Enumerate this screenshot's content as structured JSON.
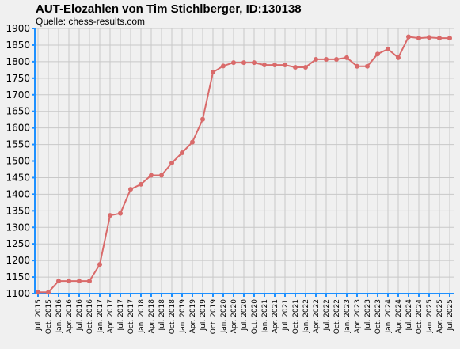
{
  "chart_data": {
    "type": "line",
    "title": "AUT-Elozahlen von Tim Stichlberger, ID:130138",
    "subtitle": "Quelle: chess-results.com",
    "xlabel": "",
    "ylabel": "",
    "ylim": [
      1100,
      1900
    ],
    "y_ticks": [
      1100,
      1150,
      1200,
      1250,
      1300,
      1350,
      1400,
      1450,
      1500,
      1550,
      1600,
      1650,
      1700,
      1750,
      1800,
      1850,
      1900
    ],
    "grid": true,
    "categories": [
      "Jul. 2015",
      "Oct. 2015",
      "Jan. 2016",
      "Apr. 2016",
      "Jul. 2016",
      "Oct. 2016",
      "Jan. 2017",
      "Apr. 2017",
      "Jul. 2017",
      "Oct. 2017",
      "Jan. 2018",
      "Apr. 2018",
      "Jul. 2018",
      "Oct. 2018",
      "Jan. 2019",
      "Apr. 2019",
      "Jul. 2019",
      "Oct. 2019",
      "Jan. 2020",
      "Apr. 2020",
      "Jul. 2020",
      "Oct. 2020",
      "Jan. 2021",
      "Apr. 2021",
      "Jul. 2021",
      "Oct. 2021",
      "Jan. 2022",
      "Apr. 2022",
      "Jul. 2022",
      "Oct. 2022",
      "Jan. 2023",
      "Apr. 2023",
      "Jul. 2023",
      "Oct. 2023",
      "Jan. 2024",
      "Apr. 2024",
      "Jul. 2024",
      "Oct. 2024",
      "Jan. 2025",
      "Apr. 2025",
      "Jul. 2025"
    ],
    "series": [
      {
        "color": "#d96a6a",
        "values": [
          1104,
          1104,
          1138,
          1138,
          1138,
          1138,
          1188,
          1336,
          1342,
          1415,
          1430,
          1457,
          1457,
          1494,
          1525,
          1557,
          1626,
          1768,
          1787,
          1797,
          1797,
          1797,
          1790,
          1790,
          1790,
          1783,
          1783,
          1807,
          1807,
          1807,
          1812,
          1786,
          1786,
          1823,
          1838,
          1812,
          1875,
          1871,
          1873,
          1871,
          1871
        ]
      }
    ],
    "colors": {
      "background": "#f0f0f0",
      "grid": "#c8c8c8",
      "axis": "#1e90ff",
      "line": "#d96a6a",
      "marker": "#d96a6a"
    }
  }
}
